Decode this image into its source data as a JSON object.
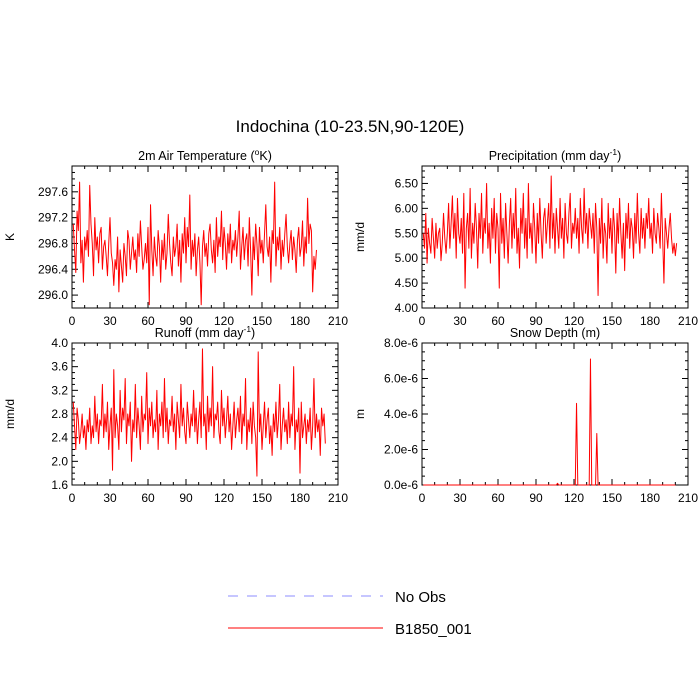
{
  "figure_title": "Indochina (10-23.5N,90-120E)",
  "colors": {
    "model": "#ff0000",
    "obs": "#8c8cff",
    "axis": "#000000"
  },
  "legend": [
    {
      "label": "No Obs",
      "style": "dashed",
      "color": "#8c8cff"
    },
    {
      "label": "B1850_001",
      "style": "solid",
      "color": "#ff0000"
    }
  ],
  "chart_data": [
    {
      "id": "temperature",
      "type": "line",
      "title": "2m Air Temperature (",
      "title_sup": "o",
      "title_end": "K)",
      "ylabel": "K",
      "xlim": [
        0,
        210
      ],
      "ylim": [
        295.8,
        298.0
      ],
      "xticks": [
        0,
        30,
        60,
        90,
        120,
        150,
        180,
        210
      ],
      "yticks": [
        296.0,
        296.4,
        296.8,
        297.2,
        297.6
      ],
      "ytick_labels": [
        "296.0",
        "296.4",
        "296.8",
        "297.2",
        "297.6"
      ],
      "series": [
        {
          "name": "B1850_001",
          "x_start": 1,
          "values": [
            297.1,
            296.7,
            296.35,
            297.3,
            297.0,
            297.75,
            296.5,
            296.85,
            296.2,
            296.9,
            296.7,
            297.0,
            296.6,
            297.7,
            297.1,
            296.8,
            296.3,
            297.2,
            296.7,
            296.9,
            296.5,
            296.95,
            297.05,
            296.4,
            296.75,
            296.85,
            296.6,
            296.3,
            296.8,
            297.2,
            296.65,
            296.5,
            296.15,
            296.55,
            296.4,
            296.9,
            296.05,
            296.7,
            296.45,
            296.2,
            296.8,
            296.6,
            296.3,
            297.0,
            296.85,
            296.4,
            296.65,
            296.9,
            296.55,
            296.7,
            296.35,
            296.95,
            296.6,
            297.15,
            296.75,
            296.4,
            296.55,
            296.8,
            296.5,
            297.05,
            295.85,
            297.4,
            296.7,
            296.3,
            296.9,
            296.6,
            296.45,
            297.0,
            296.75,
            296.2,
            296.85,
            296.55,
            296.95,
            296.4,
            296.65,
            297.25,
            296.8,
            296.5,
            296.3,
            296.9,
            296.6,
            296.75,
            297.1,
            296.45,
            296.85,
            296.2,
            296.95,
            296.65,
            297.2,
            296.5,
            297.05,
            296.75,
            297.55,
            296.4,
            296.85,
            296.6,
            296.95,
            296.3,
            296.7,
            296.9,
            296.5,
            295.85,
            296.75,
            297.0,
            296.6,
            296.8,
            296.45,
            296.95,
            297.1,
            296.7,
            296.5,
            296.85,
            296.35,
            297.2,
            296.6,
            296.9,
            296.75,
            297.3,
            296.55,
            297.05,
            296.8,
            296.4,
            296.95,
            296.65,
            297.1,
            296.5,
            296.85,
            296.7,
            297.0,
            296.6,
            296.9,
            297.3,
            296.4,
            296.75,
            297.05,
            296.55,
            296.85,
            296.95,
            296.45,
            297.2,
            296.7,
            296.0,
            296.9,
            296.55,
            297.1,
            296.8,
            296.3,
            297.05,
            296.65,
            296.85,
            296.5,
            296.95,
            297.4,
            296.75,
            296.6,
            296.9,
            296.2,
            297.0,
            296.8,
            297.75,
            296.45,
            296.9,
            296.7,
            297.05,
            296.4,
            296.85,
            296.6,
            296.95,
            297.25,
            296.75,
            296.5,
            296.8,
            297.0,
            296.55,
            296.9,
            296.7,
            296.35,
            296.85,
            297.05,
            296.6,
            296.75,
            297.15,
            296.45,
            296.9,
            296.65,
            297.5,
            296.8,
            297.1,
            297.0,
            296.05,
            296.6,
            296.4,
            296.7
          ]
        }
      ]
    },
    {
      "id": "precipitation",
      "type": "line",
      "title": "Precipitation (mm day",
      "title_sup": "-1",
      "title_end": ")",
      "ylabel": "mm/d",
      "xlim": [
        0,
        210
      ],
      "ylim": [
        4.0,
        6.85
      ],
      "xticks": [
        0,
        30,
        60,
        90,
        120,
        150,
        180,
        210
      ],
      "yticks": [
        4.0,
        4.5,
        5.0,
        5.5,
        6.0,
        6.5
      ],
      "ytick_labels": [
        "4.00",
        "4.50",
        "5.00",
        "5.50",
        "6.00",
        "6.50"
      ],
      "series": [
        {
          "name": "B1850_001",
          "x_start": 1,
          "values": [
            5.5,
            5.2,
            5.9,
            4.9,
            5.6,
            5.3,
            5.1,
            5.8,
            5.4,
            5.0,
            5.7,
            5.2,
            5.5,
            5.6,
            4.95,
            5.3,
            5.9,
            5.4,
            5.1,
            5.5,
            6.1,
            5.2,
            5.7,
            6.25,
            5.4,
            5.9,
            5.0,
            6.2,
            5.5,
            5.3,
            5.8,
            5.1,
            6.3,
            4.4,
            5.6,
            5.9,
            5.2,
            6.4,
            5.0,
            5.7,
            5.3,
            6.1,
            5.6,
            4.8,
            5.9,
            5.4,
            6.3,
            5.1,
            5.8,
            5.5,
            6.5,
            5.2,
            5.7,
            4.9,
            6.0,
            5.4,
            6.2,
            5.1,
            5.9,
            5.6,
            4.4,
            6.3,
            5.3,
            5.8,
            5.0,
            6.1,
            5.5,
            4.9,
            5.7,
            6.2,
            5.2,
            5.9,
            5.4,
            6.4,
            5.1,
            5.6,
            4.8,
            6.0,
            5.5,
            6.3,
            5.2,
            5.8,
            5.0,
            6.5,
            5.4,
            5.7,
            5.1,
            6.1,
            5.6,
            4.9,
            5.9,
            5.3,
            6.2,
            5.5,
            5.0,
            5.8,
            6.0,
            5.3,
            5.7,
            6.1,
            5.2,
            6.65,
            5.4,
            5.9,
            5.1,
            6.0,
            5.6,
            5.2,
            6.2,
            5.4,
            5.8,
            5.0,
            6.1,
            5.5,
            5.3,
            5.9,
            6.3,
            5.2,
            5.7,
            5.5,
            6.0,
            5.4,
            5.8,
            5.1,
            6.2,
            5.6,
            5.3,
            6.4,
            5.5,
            5.9,
            5.2,
            6.0,
            5.7,
            5.4,
            5.9,
            5.1,
            6.1,
            5.6,
            4.25,
            5.8,
            5.3,
            6.2,
            5.0,
            5.7,
            5.5,
            4.9,
            6.1,
            5.4,
            5.8,
            5.1,
            6.0,
            5.6,
            4.7,
            5.9,
            5.3,
            6.2,
            5.5,
            5.0,
            5.7,
            4.75,
            5.9,
            5.4,
            6.1,
            5.2,
            5.8,
            5.6,
            5.0,
            5.9,
            5.3,
            6.3,
            5.5,
            5.1,
            6.0,
            5.4,
            5.8,
            5.2,
            5.9,
            5.6,
            6.2,
            5.4,
            5.7,
            5.1,
            6.0,
            5.5,
            5.3,
            5.9,
            5.6,
            5.2,
            6.3,
            5.4,
            4.5,
            5.8,
            5.5,
            5.2,
            5.6,
            5.9,
            5.4,
            5.1,
            5.3,
            5.05,
            5.3
          ]
        }
      ]
    },
    {
      "id": "runoff",
      "type": "line",
      "title": "Runoff (mm day",
      "title_sup": "-1",
      "title_end": ")",
      "ylabel": "mm/d",
      "xlim": [
        0,
        210
      ],
      "ylim": [
        1.6,
        4.0
      ],
      "xticks": [
        0,
        30,
        60,
        90,
        120,
        150,
        180,
        210
      ],
      "yticks": [
        1.6,
        2.0,
        2.4,
        2.8,
        3.2,
        3.6,
        4.0
      ],
      "ytick_labels": [
        "1.6",
        "2.0",
        "2.4",
        "2.8",
        "3.2",
        "3.6",
        "4.0"
      ],
      "series": [
        {
          "name": "B1850_001",
          "x_start": 1,
          "values": [
            3.0,
            2.6,
            2.2,
            2.9,
            2.7,
            2.3,
            2.5,
            2.8,
            2.4,
            2.6,
            2.2,
            2.7,
            2.5,
            2.9,
            2.3,
            2.6,
            2.4,
            3.1,
            2.5,
            2.8,
            2.3,
            2.7,
            2.6,
            3.3,
            2.4,
            2.8,
            2.5,
            3.0,
            2.2,
            2.6,
            2.9,
            1.85,
            3.55,
            2.4,
            2.8,
            2.6,
            2.2,
            3.2,
            2.5,
            2.9,
            2.7,
            3.4,
            2.3,
            2.8,
            2.6,
            3.0,
            2.0,
            2.7,
            2.5,
            3.3,
            2.4,
            2.9,
            2.6,
            2.2,
            3.1,
            2.5,
            2.8,
            2.7,
            3.5,
            2.3,
            2.9,
            2.6,
            3.0,
            2.4,
            2.7,
            2.5,
            3.2,
            2.2,
            2.8,
            2.6,
            3.0,
            2.4,
            3.4,
            2.5,
            2.9,
            2.3,
            2.7,
            2.6,
            3.1,
            2.5,
            2.8,
            2.2,
            3.0,
            2.7,
            2.4,
            3.3,
            2.6,
            2.9,
            2.5,
            2.3,
            3.0,
            2.7,
            2.4,
            2.8,
            2.6,
            3.2,
            2.5,
            2.9,
            2.3,
            2.7,
            3.0,
            2.4,
            3.9,
            2.6,
            2.8,
            2.2,
            3.1,
            2.5,
            2.9,
            2.6,
            3.6,
            2.4,
            2.8,
            2.7,
            3.0,
            2.5,
            2.3,
            3.2,
            2.6,
            2.9,
            2.4,
            2.7,
            3.1,
            2.5,
            2.8,
            2.2,
            2.6,
            3.0,
            2.4,
            2.7,
            2.9,
            2.5,
            3.1,
            2.3,
            2.8,
            2.6,
            3.4,
            2.2,
            2.7,
            2.5,
            2.9,
            2.3,
            3.0,
            2.6,
            2.4,
            1.75,
            3.85,
            2.5,
            2.8,
            2.2,
            2.6,
            3.0,
            2.4,
            2.7,
            2.9,
            2.3,
            2.6,
            2.1,
            2.8,
            2.5,
            3.0,
            2.4,
            2.7,
            3.3,
            2.2,
            2.6,
            2.9,
            2.5,
            2.7,
            2.3,
            3.0,
            2.4,
            2.8,
            2.6,
            3.6,
            2.2,
            2.7,
            2.5,
            2.9,
            1.8,
            3.0,
            2.4,
            2.6,
            2.8,
            2.3,
            2.7,
            2.5,
            2.9,
            2.2,
            2.6,
            3.4,
            2.4,
            2.8,
            2.5,
            2.7,
            2.1,
            2.9,
            2.6,
            2.8,
            2.3
          ]
        }
      ]
    },
    {
      "id": "snow",
      "type": "line",
      "title": "Snow Depth (m)",
      "title_sup": "",
      "title_end": "",
      "ylabel": "m",
      "xlim": [
        0,
        210
      ],
      "ylim": [
        0,
        8e-06
      ],
      "xticks": [
        0,
        30,
        60,
        90,
        120,
        150,
        180,
        210
      ],
      "yticks": [
        0,
        2e-06,
        4e-06,
        6e-06,
        8e-06
      ],
      "ytick_labels": [
        "0.0e-6",
        "2.0e-6",
        "4.0e-6",
        "6.0e-6",
        "8.0e-6"
      ],
      "series": [
        {
          "name": "B1850_001",
          "x_start": 1,
          "values": [],
          "spikes": [
            {
              "x": 107,
              "value": 1e-07
            },
            {
              "x": 122,
              "value": 4.6e-06
            },
            {
              "x": 133,
              "value": 7.1e-06
            },
            {
              "x": 138,
              "value": 2.9e-06
            }
          ],
          "n_points": 200
        }
      ]
    }
  ]
}
